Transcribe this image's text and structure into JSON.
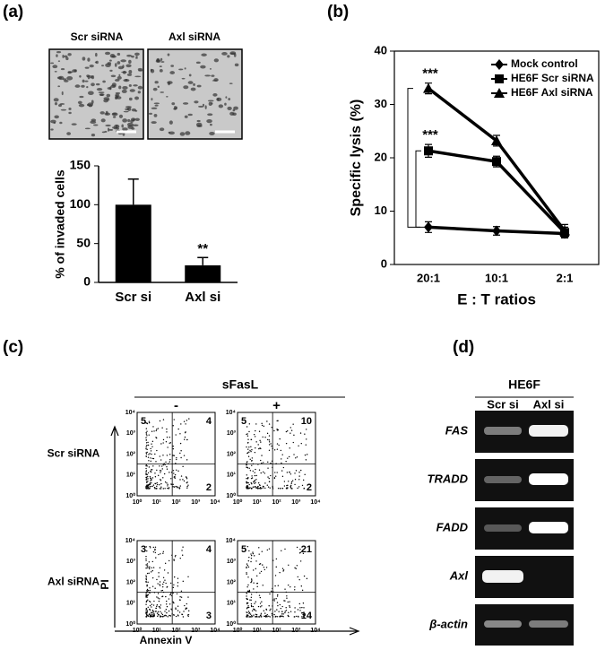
{
  "chart_data": [
    {
      "type": "bar",
      "categories": [
        "Scr si",
        "Axl si"
      ],
      "values": [
        100,
        22
      ],
      "errors": [
        33,
        10
      ],
      "color": "#000000",
      "ylim": [
        0,
        150
      ],
      "yticks": [
        0,
        50,
        100,
        150
      ],
      "ylabel": "% of invaded cells",
      "annotations": [
        "**"
      ]
    },
    {
      "type": "line",
      "categories": [
        "20:1",
        "10:1",
        "2:1"
      ],
      "series": [
        {
          "name": "Mock control",
          "marker": "diamond",
          "color": "#000000",
          "values": [
            7,
            6.3,
            5.8
          ],
          "errors": [
            1,
            0.8,
            0.8
          ]
        },
        {
          "name": "HE6F Scr siRNA",
          "marker": "square",
          "color": "#000000",
          "values": [
            21.3,
            19.3,
            6
          ],
          "errors": [
            1.2,
            1,
            1
          ]
        },
        {
          "name": "HE6F Axl siRNA",
          "marker": "triangle",
          "color": "#000000",
          "values": [
            33,
            23.2,
            6.3
          ],
          "errors": [
            1,
            1,
            1.2
          ]
        }
      ],
      "ylim": [
        0,
        40
      ],
      "yticks": [
        0,
        10,
        20,
        30,
        40
      ],
      "ylabel": "Specific  lysis  (%)",
      "xlabel": "E : T ratios",
      "annotations": [
        "***",
        "***"
      ]
    }
  ],
  "panel_labels": [
    "(a)",
    "(b)",
    "(c)",
    "(d)"
  ],
  "panel_a": {
    "image_labels": [
      "Scr siRNA",
      "Axl siRNA"
    ]
  },
  "panel_c": {
    "treatment": "sFasL",
    "columns": [
      "-",
      "+"
    ],
    "rows": [
      "Scr siRNA",
      "Axl siRNA"
    ],
    "x_axis": "Annexin V",
    "y_axis": "PI",
    "axis_ticks": [
      "10⁰",
      "10¹",
      "10²",
      "10³",
      "10⁴"
    ],
    "quadrants": [
      [
        [
          5,
          4,
          2
        ],
        [
          5,
          10,
          2
        ]
      ],
      [
        [
          3,
          4,
          3
        ],
        [
          5,
          21,
          14
        ]
      ]
    ]
  },
  "panel_d": {
    "cell_line": "HE6F",
    "columns": [
      "Scr si",
      "Axl si"
    ],
    "genes": [
      "FAS",
      "TRADD",
      "FADD",
      "Axl",
      "β-actin"
    ]
  }
}
